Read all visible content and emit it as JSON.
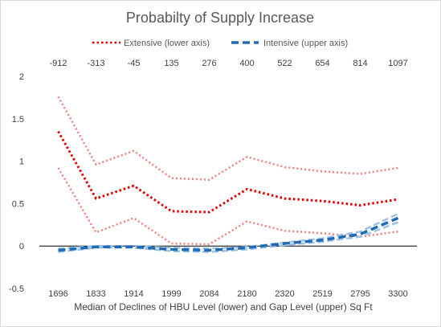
{
  "chart_data": {
    "type": "line",
    "title": "Probabilty of Supply Increase",
    "xlabel": "Median of Declines of HBU Level (lower) and Gap Level (upper) Sq Ft",
    "lower_categories": [
      "1696",
      "1833",
      "1914",
      "1999",
      "2084",
      "2180",
      "2320",
      "2519",
      "2795",
      "3300"
    ],
    "upper_categories": [
      "-912",
      "-313",
      "-45",
      "135",
      "276",
      "400",
      "522",
      "654",
      "814",
      "1097"
    ],
    "ylim": [
      -0.5,
      2
    ],
    "yticks": [
      "-0.5",
      "0",
      "0.5",
      "1",
      "1.5",
      "2"
    ],
    "ytick_values": [
      -0.5,
      0,
      0.5,
      1,
      1.5,
      2
    ],
    "legend_position": "top",
    "legend": {
      "extensive": "Extensive (lower axis)",
      "intensive": "Intensive (upper axis)"
    },
    "series": [
      {
        "name": "Extensive (lower axis)",
        "axis": "lower",
        "color": "#e00000",
        "values": [
          1.35,
          0.56,
          0.71,
          0.41,
          0.4,
          0.67,
          0.56,
          0.53,
          0.48,
          0.55
        ],
        "upper_band": [
          1.76,
          0.96,
          1.12,
          0.8,
          0.78,
          1.05,
          0.93,
          0.88,
          0.85,
          0.92
        ],
        "lower_band": [
          0.92,
          0.16,
          0.33,
          0.03,
          0.02,
          0.29,
          0.18,
          0.15,
          0.11,
          0.17
        ]
      },
      {
        "name": "Intensive (upper axis)",
        "axis": "upper",
        "color": "#1f6bb5",
        "values": [
          -0.05,
          -0.01,
          -0.01,
          -0.04,
          -0.05,
          -0.02,
          0.03,
          0.07,
          0.14,
          0.33
        ],
        "upper_band": [
          -0.03,
          0.0,
          0.0,
          -0.02,
          -0.03,
          -0.01,
          0.04,
          0.09,
          0.17,
          0.38
        ],
        "lower_band": [
          -0.07,
          -0.02,
          -0.02,
          -0.06,
          -0.07,
          -0.04,
          0.01,
          0.05,
          0.11,
          0.28
        ]
      }
    ]
  }
}
